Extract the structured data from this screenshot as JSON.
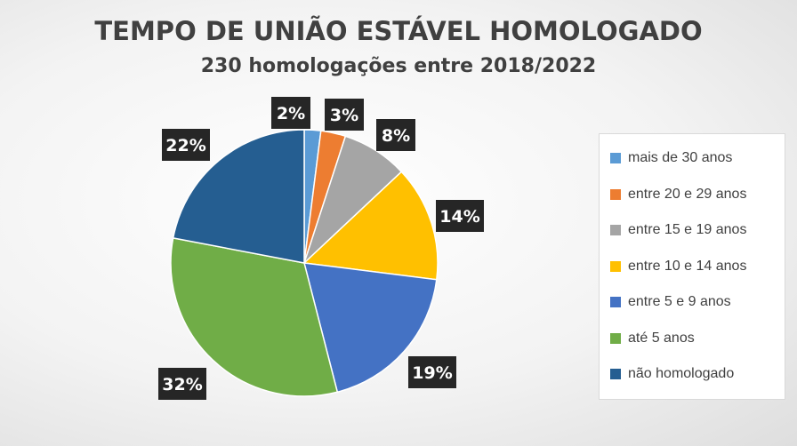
{
  "chart_data": {
    "type": "pie",
    "title": "TEMPO DE UNIÃO ESTÁVEL HOMOLOGADO",
    "subtitle": "230 homologações entre 2018/2022",
    "slices": [
      {
        "name": "mais de 30 anos",
        "value": 2,
        "label": "2%",
        "color": "#5B9BD5"
      },
      {
        "name": "entre 20 e 29 anos",
        "value": 3,
        "label": "3%",
        "color": "#ED7D31"
      },
      {
        "name": "entre 15 e 19 anos",
        "value": 8,
        "label": "8%",
        "color": "#A5A5A5"
      },
      {
        "name": "entre 10 e 14 anos",
        "value": 14,
        "label": "14%",
        "color": "#FFC000"
      },
      {
        "name": "entre 5 e 9 anos",
        "value": 19,
        "label": "19%",
        "color": "#4472C4"
      },
      {
        "name": "até 5 anos",
        "value": 32,
        "label": "32%",
        "color": "#70AD47"
      },
      {
        "name": "não homologado",
        "value": 22,
        "label": "22%",
        "color": "#255E91"
      }
    ],
    "legend_position": "right",
    "label_style": "dark callout boxes"
  }
}
